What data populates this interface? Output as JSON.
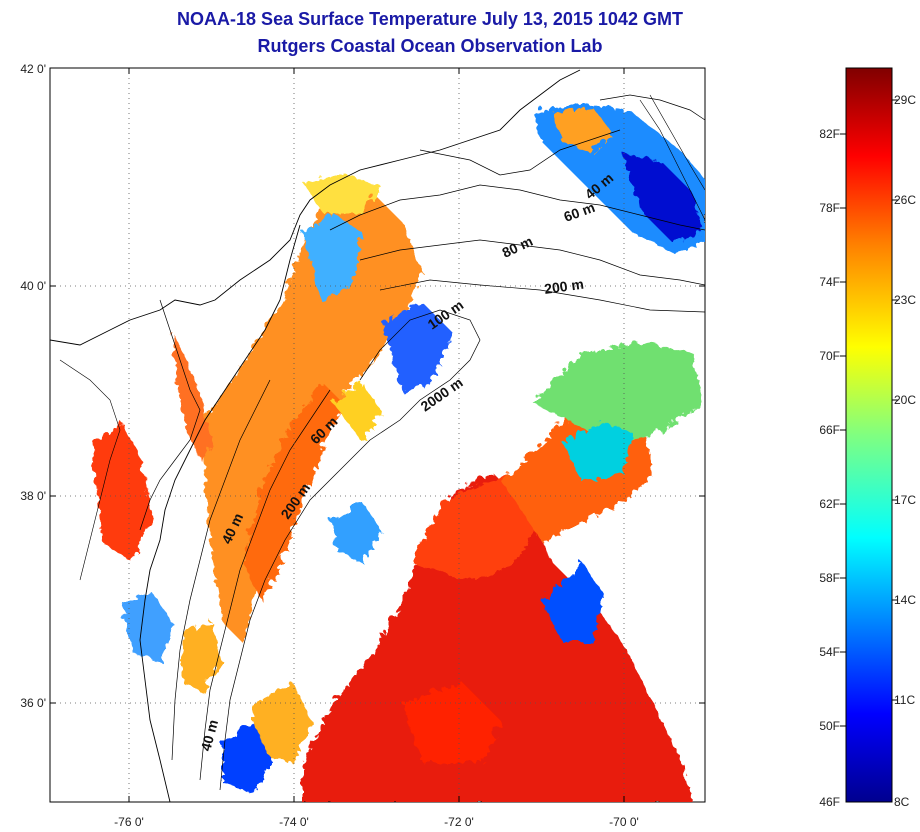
{
  "title": {
    "line1": "NOAA-18 Sea Surface Temperature July 13, 2015 1042 GMT",
    "line2": "Rutgers Coastal Ocean Observation Lab"
  },
  "axes": {
    "lat_ticks": [
      "42 0'",
      "40 0'",
      "38 0'",
      "36 0'"
    ],
    "lon_ticks": [
      "-76 0'",
      "-74 0'",
      "-72 0'",
      "-70 0'"
    ]
  },
  "isobaths": [
    "40 m",
    "60 m",
    "80 m",
    "200 m",
    "100 m",
    "2000 m",
    "60 m",
    "200 m",
    "40 m",
    "40 m"
  ],
  "colorbar": {
    "fahrenheit": [
      "82F",
      "78F",
      "74F",
      "70F",
      "66F",
      "62F",
      "58F",
      "54F",
      "50F",
      "46F"
    ],
    "celsius": [
      "29C",
      "26C",
      "23C",
      "20C",
      "17C",
      "14C",
      "11C",
      "8C"
    ],
    "colors": [
      "#00008f",
      "#0000ff",
      "#0080ff",
      "#00ffff",
      "#80ff80",
      "#ffff00",
      "#ff8000",
      "#ff0000",
      "#800000"
    ]
  }
}
